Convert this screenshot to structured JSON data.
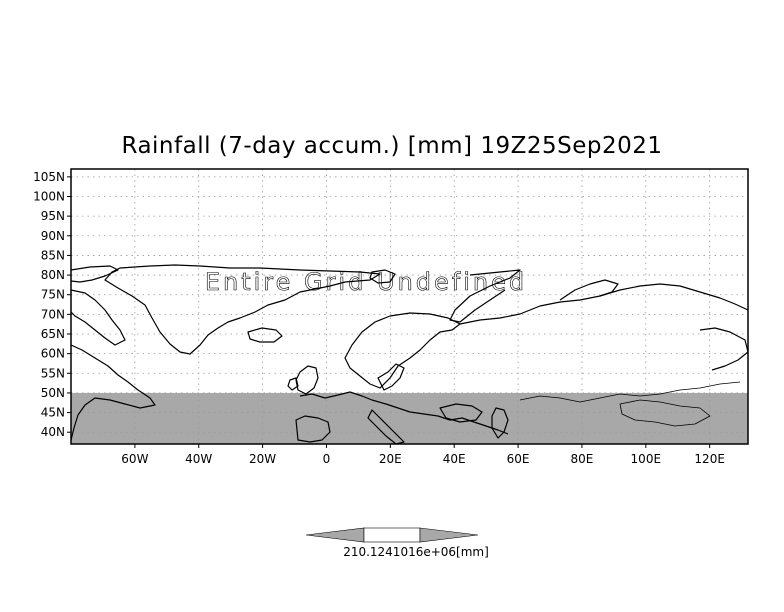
{
  "title": "Rainfall (7-day accum.) [mm] 19Z25Sep2021",
  "overlay_message": "Entire Grid Undefined",
  "colors": {
    "background": "#ffffff",
    "frame": "#000000",
    "grid": "#9a9a9a",
    "land": "#ffffff",
    "coastline": "#000000",
    "undefined_mask": "#a8a8a8",
    "colorbar_fill": "#a8a8a8"
  },
  "map": {
    "projection": "latlon",
    "lon_range": [
      -80,
      132
    ],
    "lat_range": [
      37,
      107
    ],
    "grid_lines": "dotted",
    "lat_ticks": [
      {
        "value": 40,
        "label": "40N"
      },
      {
        "value": 45,
        "label": "45N"
      },
      {
        "value": 50,
        "label": "50N"
      },
      {
        "value": 55,
        "label": "55N"
      },
      {
        "value": 60,
        "label": "60N"
      },
      {
        "value": 65,
        "label": "65N"
      },
      {
        "value": 70,
        "label": "70N"
      },
      {
        "value": 75,
        "label": "75N"
      },
      {
        "value": 80,
        "label": "80N"
      },
      {
        "value": 85,
        "label": "85N"
      },
      {
        "value": 90,
        "label": "90N"
      },
      {
        "value": 95,
        "label": "95N"
      },
      {
        "value": 100,
        "label": "100N"
      },
      {
        "value": 105,
        "label": "105N"
      }
    ],
    "lon_ticks": [
      {
        "value": -60,
        "label": "60W"
      },
      {
        "value": -40,
        "label": "40W"
      },
      {
        "value": -20,
        "label": "20W"
      },
      {
        "value": 0,
        "label": "0"
      },
      {
        "value": 20,
        "label": "20E"
      },
      {
        "value": 40,
        "label": "40E"
      },
      {
        "value": 60,
        "label": "60E"
      },
      {
        "value": 80,
        "label": "80E"
      },
      {
        "value": 100,
        "label": "100E"
      },
      {
        "value": 120,
        "label": "120E"
      }
    ],
    "undefined_band": {
      "lat_min": 37,
      "lat_max": 50,
      "lon_min": -80,
      "lon_max": 132
    }
  },
  "colorbar": {
    "label": "210.1241016e+06[mm]"
  }
}
